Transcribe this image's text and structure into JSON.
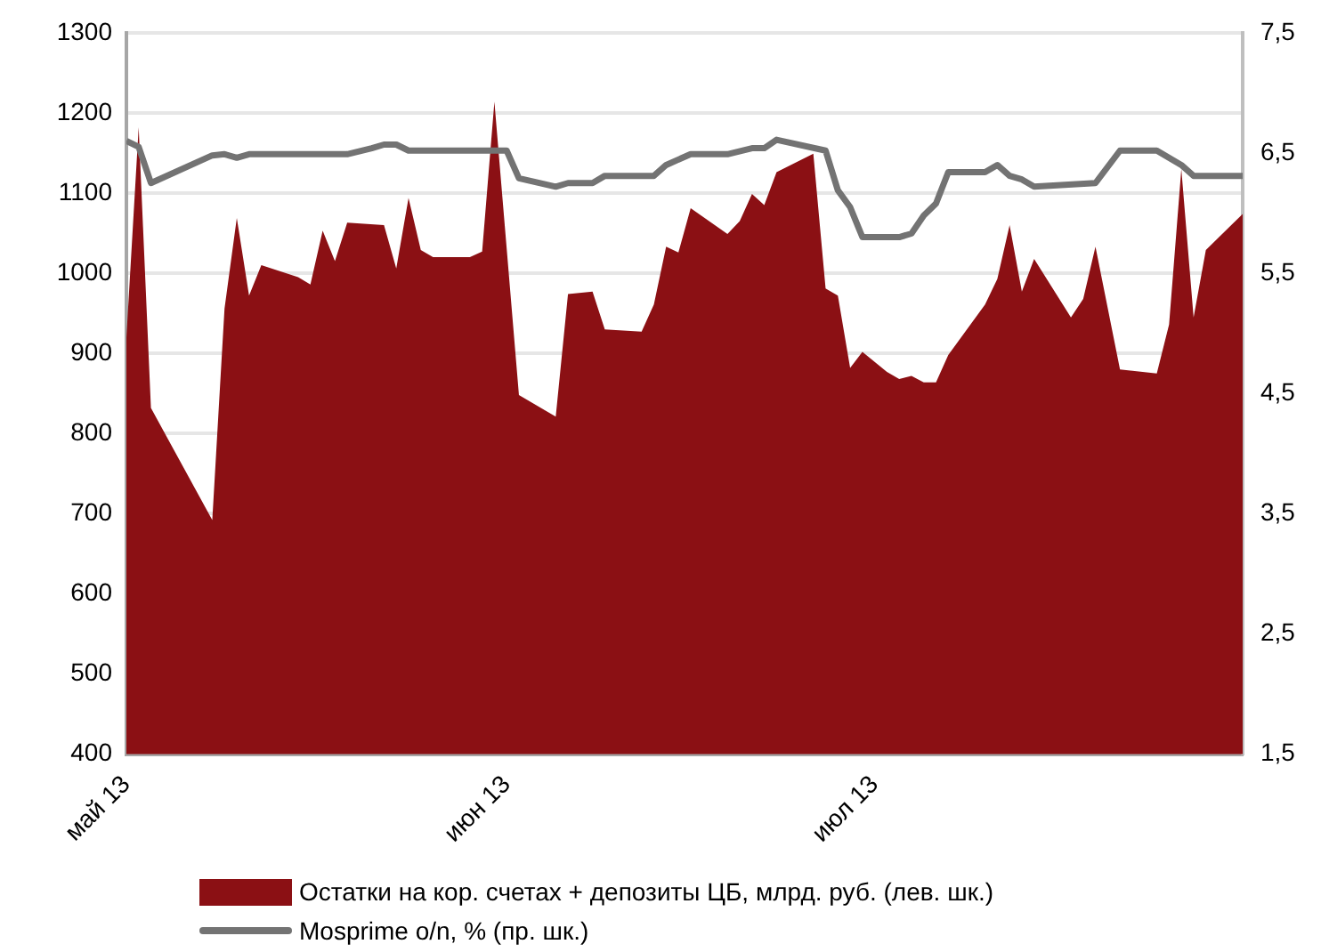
{
  "chart_data": {
    "type": "area",
    "grid": "y",
    "legend": "bottom",
    "marker": "none",
    "xlim": [
      "2013-05-01",
      "2013-07-31"
    ],
    "xticks": [
      {
        "value": "2013-05-01",
        "label": "май 13"
      },
      {
        "value": "2013-06-01",
        "label": "июн 13"
      },
      {
        "value": "2013-07-01",
        "label": "июл 13"
      }
    ],
    "ylim": [
      400,
      1300
    ],
    "yticks": [
      400,
      500,
      600,
      700,
      800,
      900,
      1000,
      1100,
      1200,
      1300
    ],
    "y2lim": [
      1.5,
      7.5
    ],
    "y2ticks": [
      {
        "value": 1.5,
        "label": "1,5"
      },
      {
        "value": 2.5,
        "label": "2,5"
      },
      {
        "value": 3.5,
        "label": "3,5"
      },
      {
        "value": 4.5,
        "label": "4,5"
      },
      {
        "value": 5.5,
        "label": "5,5"
      },
      {
        "value": 6.5,
        "label": "6,5"
      },
      {
        "value": 7.5,
        "label": "7,5"
      }
    ],
    "series": [
      {
        "name": "Остатки на кор. счетах + депозиты ЦБ, млрд. руб. (лев. шк.)",
        "color": "#8b1014",
        "x": [
          "2013-05-01",
          "2013-05-02",
          "2013-05-03",
          "2013-05-08",
          "2013-05-09",
          "2013-05-10",
          "2013-05-11",
          "2013-05-12",
          "2013-05-15",
          "2013-05-16",
          "2013-05-17",
          "2013-05-18",
          "2013-05-19",
          "2013-05-22",
          "2013-05-23",
          "2013-05-24",
          "2013-05-25",
          "2013-05-26",
          "2013-05-29",
          "2013-05-30",
          "2013-05-31",
          "2013-06-02",
          "2013-06-05",
          "2013-06-06",
          "2013-06-08",
          "2013-06-09",
          "2013-06-12",
          "2013-06-13",
          "2013-06-14",
          "2013-06-15",
          "2013-06-16",
          "2013-06-19",
          "2013-06-20",
          "2013-06-21",
          "2013-06-22",
          "2013-06-23",
          "2013-06-26",
          "2013-06-27",
          "2013-06-28",
          "2013-06-29",
          "2013-06-30",
          "2013-07-02",
          "2013-07-03",
          "2013-07-04",
          "2013-07-05",
          "2013-07-06",
          "2013-07-07",
          "2013-07-10",
          "2013-07-11",
          "2013-07-12",
          "2013-07-13",
          "2013-07-14",
          "2013-07-17",
          "2013-07-18",
          "2013-07-19",
          "2013-07-21",
          "2013-07-24",
          "2013-07-25",
          "2013-07-26",
          "2013-07-27",
          "2013-07-28",
          "2013-07-31"
        ],
        "values": [
          920,
          1182,
          832,
          692,
          956,
          1069,
          972,
          1010,
          995,
          986,
          1053,
          1015,
          1063,
          1060,
          1006,
          1094,
          1029,
          1020,
          1020,
          1027,
          1214,
          848,
          821,
          974,
          977,
          930,
          927,
          961,
          1033,
          1026,
          1081,
          1049,
          1065,
          1099,
          1085,
          1126,
          1149,
          981,
          972,
          882,
          902,
          877,
          868,
          872,
          864,
          864,
          898,
          961,
          993,
          1060,
          977,
          1018,
          945,
          968,
          1033,
          880,
          875,
          936,
          1130,
          945,
          1029,
          1074
        ]
      },
      {
        "name": "Mosprime o/n, % (пр. шк.)",
        "type": "line",
        "axis": "y2",
        "color": "#737373",
        "x": [
          "2013-05-01",
          "2013-05-02",
          "2013-05-03",
          "2013-05-08",
          "2013-05-09",
          "2013-05-10",
          "2013-05-11",
          "2013-05-19",
          "2013-05-21",
          "2013-05-22",
          "2013-05-23",
          "2013-05-24",
          "2013-06-01",
          "2013-06-02",
          "2013-06-05",
          "2013-06-06",
          "2013-06-08",
          "2013-06-09",
          "2013-06-13",
          "2013-06-14",
          "2013-06-16",
          "2013-06-19",
          "2013-06-21",
          "2013-06-22",
          "2013-06-23",
          "2013-06-27",
          "2013-06-28",
          "2013-06-29",
          "2013-06-30",
          "2013-07-03",
          "2013-07-04",
          "2013-07-05",
          "2013-07-06",
          "2013-07-07",
          "2013-07-10",
          "2013-07-11",
          "2013-07-12",
          "2013-07-13",
          "2013-07-14",
          "2013-07-19",
          "2013-07-21",
          "2013-07-24",
          "2013-07-26",
          "2013-07-27",
          "2013-07-31"
        ],
        "values": [
          6.6,
          6.55,
          6.25,
          6.48,
          6.49,
          6.46,
          6.49,
          6.49,
          6.54,
          6.57,
          6.57,
          6.52,
          6.52,
          6.29,
          6.22,
          6.25,
          6.25,
          6.31,
          6.31,
          6.4,
          6.49,
          6.49,
          6.54,
          6.54,
          6.61,
          6.52,
          6.19,
          6.05,
          5.8,
          5.8,
          5.83,
          5.98,
          6.08,
          6.34,
          6.34,
          6.4,
          6.31,
          6.28,
          6.22,
          6.25,
          6.52,
          6.52,
          6.4,
          6.31,
          6.31
        ]
      }
    ]
  }
}
